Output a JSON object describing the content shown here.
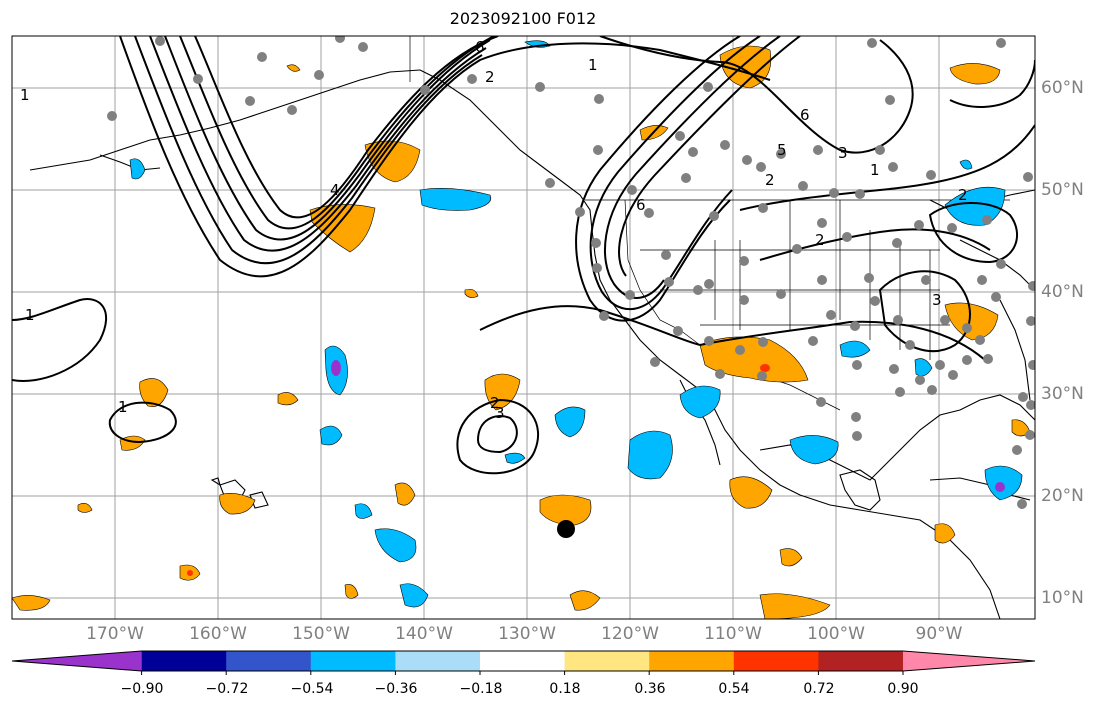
{
  "title": "2023092100 F012",
  "lon_labels": [
    "170°W",
    "160°W",
    "150°W",
    "140°W",
    "130°W",
    "120°W",
    "110°W",
    "100°W",
    "90°W"
  ],
  "lat_labels": [
    "60°N",
    "50°N",
    "40°N",
    "30°N",
    "20°N",
    "10°N"
  ],
  "colorbar": {
    "ticks": [
      "−0.90",
      "−0.72",
      "−0.54",
      "−0.36",
      "−0.18",
      "0.18",
      "0.36",
      "0.54",
      "0.72",
      "0.90"
    ],
    "colors": [
      "#9933cc",
      "#000099",
      "#3355cc",
      "#00bbff",
      "#aaddf7",
      "#ffffff",
      "#ffe680",
      "#ffa500",
      "#ff3300",
      "#b22222",
      "#ff88aa"
    ]
  },
  "contour_labels": [
    "1",
    "1",
    "1",
    "1",
    "2",
    "2",
    "2",
    "2",
    "3",
    "3",
    "6",
    "6",
    "6",
    "4",
    "5",
    "1",
    "2",
    "3"
  ],
  "marker_text": "●"
}
